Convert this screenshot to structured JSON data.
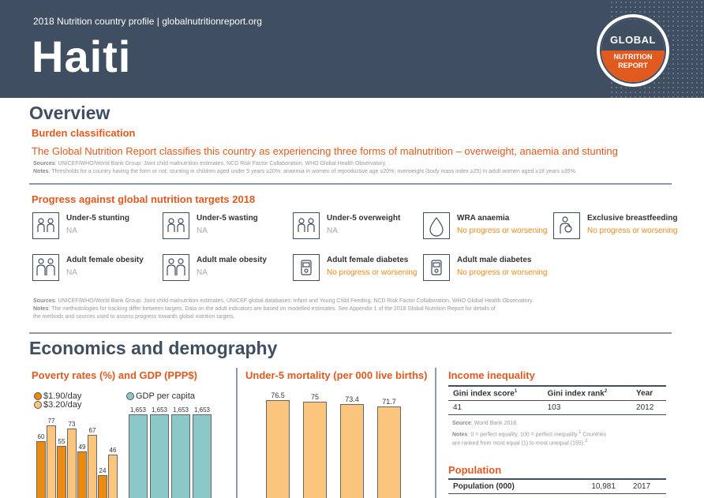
{
  "header": {
    "subtitle": "2018 Nutrition country profile  |  globalnutritionreport.org",
    "country": "Haiti",
    "logo": {
      "top": "GLOBAL",
      "bottom": "NUTRITION REPORT"
    }
  },
  "overview": {
    "title": "Overview",
    "burden_heading": "Burden classification",
    "statement": "The Global Nutrition Report classifies this country as experiencing three forms of malnutrition – overweight, anaemia and stunting",
    "sources_label": "Sources",
    "sources_text": ": UNICEF/WHO/World Bank Group: Joint child malnutrition estimates, NCD Risk Factor Collaboration, WHO Global Health Observatory.",
    "notes_label": "Notes",
    "notes_text": ": Thresholds for a country having the form or not: stunting in children aged under 5 years ≥20%; anaemia in women of reproductive age ≥20%; overweight (body mass index ≥25) in adult women aged ≥18 years ≥35%."
  },
  "progress": {
    "heading": "Progress against global nutrition targets 2018",
    "targets": [
      {
        "name": "Under-5 stunting",
        "status": "NA",
        "icon": "children-icon"
      },
      {
        "name": "Under-5 wasting",
        "status": "NA",
        "icon": "children-icon"
      },
      {
        "name": "Under-5 overweight",
        "status": "NA",
        "icon": "children-icon"
      },
      {
        "name": "WRA anaemia",
        "status": "No progress or worsening",
        "icon": "blood-drop-icon"
      },
      {
        "name": "Exclusive breastfeeding",
        "status": "No progress or worsening",
        "icon": "breastfeeding-icon"
      },
      {
        "name": "Adult female obesity",
        "status": "NA",
        "icon": "adults-icon"
      },
      {
        "name": "Adult male obesity",
        "status": "NA",
        "icon": "adults-icon"
      },
      {
        "name": "Adult female diabetes",
        "status": "No progress or worsening",
        "icon": "glucose-meter-icon"
      },
      {
        "name": "Adult male diabetes",
        "status": "No progress or worsening",
        "icon": "glucose-meter-icon"
      }
    ],
    "sources_label": "Sources",
    "sources_text": ": UNICEF/WHO/World Bank Group: Joint child malnutrition estimates, UNICEF global databases: Infant and Young Child Feeding, NCD Risk Factor Collaboration, WHO Global Health Observatory.",
    "notes_label": "Notes",
    "notes_line1": ": The methodologies for tracking differ between targets. Data on the adult indicators are based on modelled estimates. See Appendix 1 of the 2018 Global Nutrition Report for details of",
    "notes_line2": "the methods and sources used to assess progress towards global nutrition targets."
  },
  "economics": {
    "title": "Economics and demography",
    "poverty_heading": "Poverty rates (%) and GDP (PPP$)",
    "mortality_heading": "Under-5 mortality (per 000 live births)",
    "income_heading": "Income inequality",
    "income_headers": [
      "Gini index score",
      "Gini index rank",
      "Year"
    ],
    "income_header_sups": [
      "1",
      "2"
    ],
    "income_row": [
      "41",
      "103",
      "2012"
    ],
    "income_source_label": "Source",
    "income_source_text": ": World Bank 2018.",
    "income_notes_label": "Notes",
    "income_notes_line1": ": 0 = perfect equality, 100 = perfect inequality.",
    "income_notes_sup1": "1",
    "income_notes_line1b": " Countries",
    "income_notes_line2": "are ranked from most equal (1) to most unequal (155).",
    "income_notes_sup2": "2",
    "population_heading": "Population",
    "population_row": [
      "Population (000)",
      "10,981",
      "2017"
    ]
  },
  "colors": {
    "header_bg": "#3f4e61",
    "accent": "#e05a1f",
    "dark_orange": "#ec8a0f",
    "light_orange": "#fbc57e",
    "teal": "#8cc8c8"
  },
  "chart_data": [
    {
      "type": "bar",
      "title": "Poverty rates (%) and GDP (PPP$)",
      "series": [
        {
          "name": "$1.90/day",
          "values": [
            60,
            55,
            49,
            24
          ]
        },
        {
          "name": "$3.20/day",
          "values": [
            77,
            73,
            67,
            46
          ]
        }
      ],
      "gdp_series": {
        "name": "GDP per capita",
        "values": [
          1653,
          1653,
          1653,
          1653
        ],
        "labels": [
          "1,653",
          "1,653",
          "1,653",
          "1,653"
        ]
      },
      "legend": "top-left"
    },
    {
      "type": "bar",
      "title": "Under-5 mortality (per 000 live births)",
      "values": [
        76.5,
        75,
        73.4,
        71.7
      ],
      "labels": [
        "76.5",
        "75",
        "73.4",
        "71.7"
      ]
    }
  ]
}
